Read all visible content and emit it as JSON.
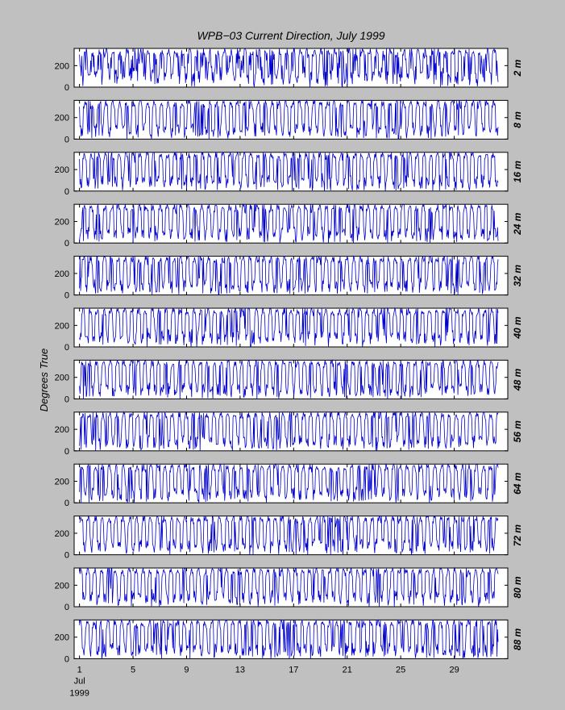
{
  "chart_data": {
    "type": "line",
    "title": "WPB−03  Current Direction,  July 1999",
    "ylabel": "Degrees True",
    "xlabel": "",
    "ylim": [
      0,
      360
    ],
    "yticks": [
      0,
      200
    ],
    "xlim": [
      0.6,
      33.0
    ],
    "x_ticks": [
      1,
      5,
      9,
      13,
      17,
      21,
      25,
      29
    ],
    "x_tick_labels": [
      "1",
      "5",
      "9",
      "13",
      "17",
      "21",
      "25",
      "29"
    ],
    "x_sublabels": [
      "Jul",
      "1999"
    ],
    "x_unit": "day of July 1999",
    "sample_interval_days": 0.0417,
    "data_start_day": 1.0,
    "data_end_day": 32.3,
    "line_color": "#0000cc",
    "grid": false,
    "series": [
      {
        "name": "2 m"
      },
      {
        "name": "8 m"
      },
      {
        "name": "16 m"
      },
      {
        "name": "24 m"
      },
      {
        "name": "32 m"
      },
      {
        "name": "40 m"
      },
      {
        "name": "48 m"
      },
      {
        "name": "56 m"
      },
      {
        "name": "64 m"
      },
      {
        "name": "72 m"
      },
      {
        "name": "80 m"
      },
      {
        "name": "88 m"
      }
    ]
  }
}
